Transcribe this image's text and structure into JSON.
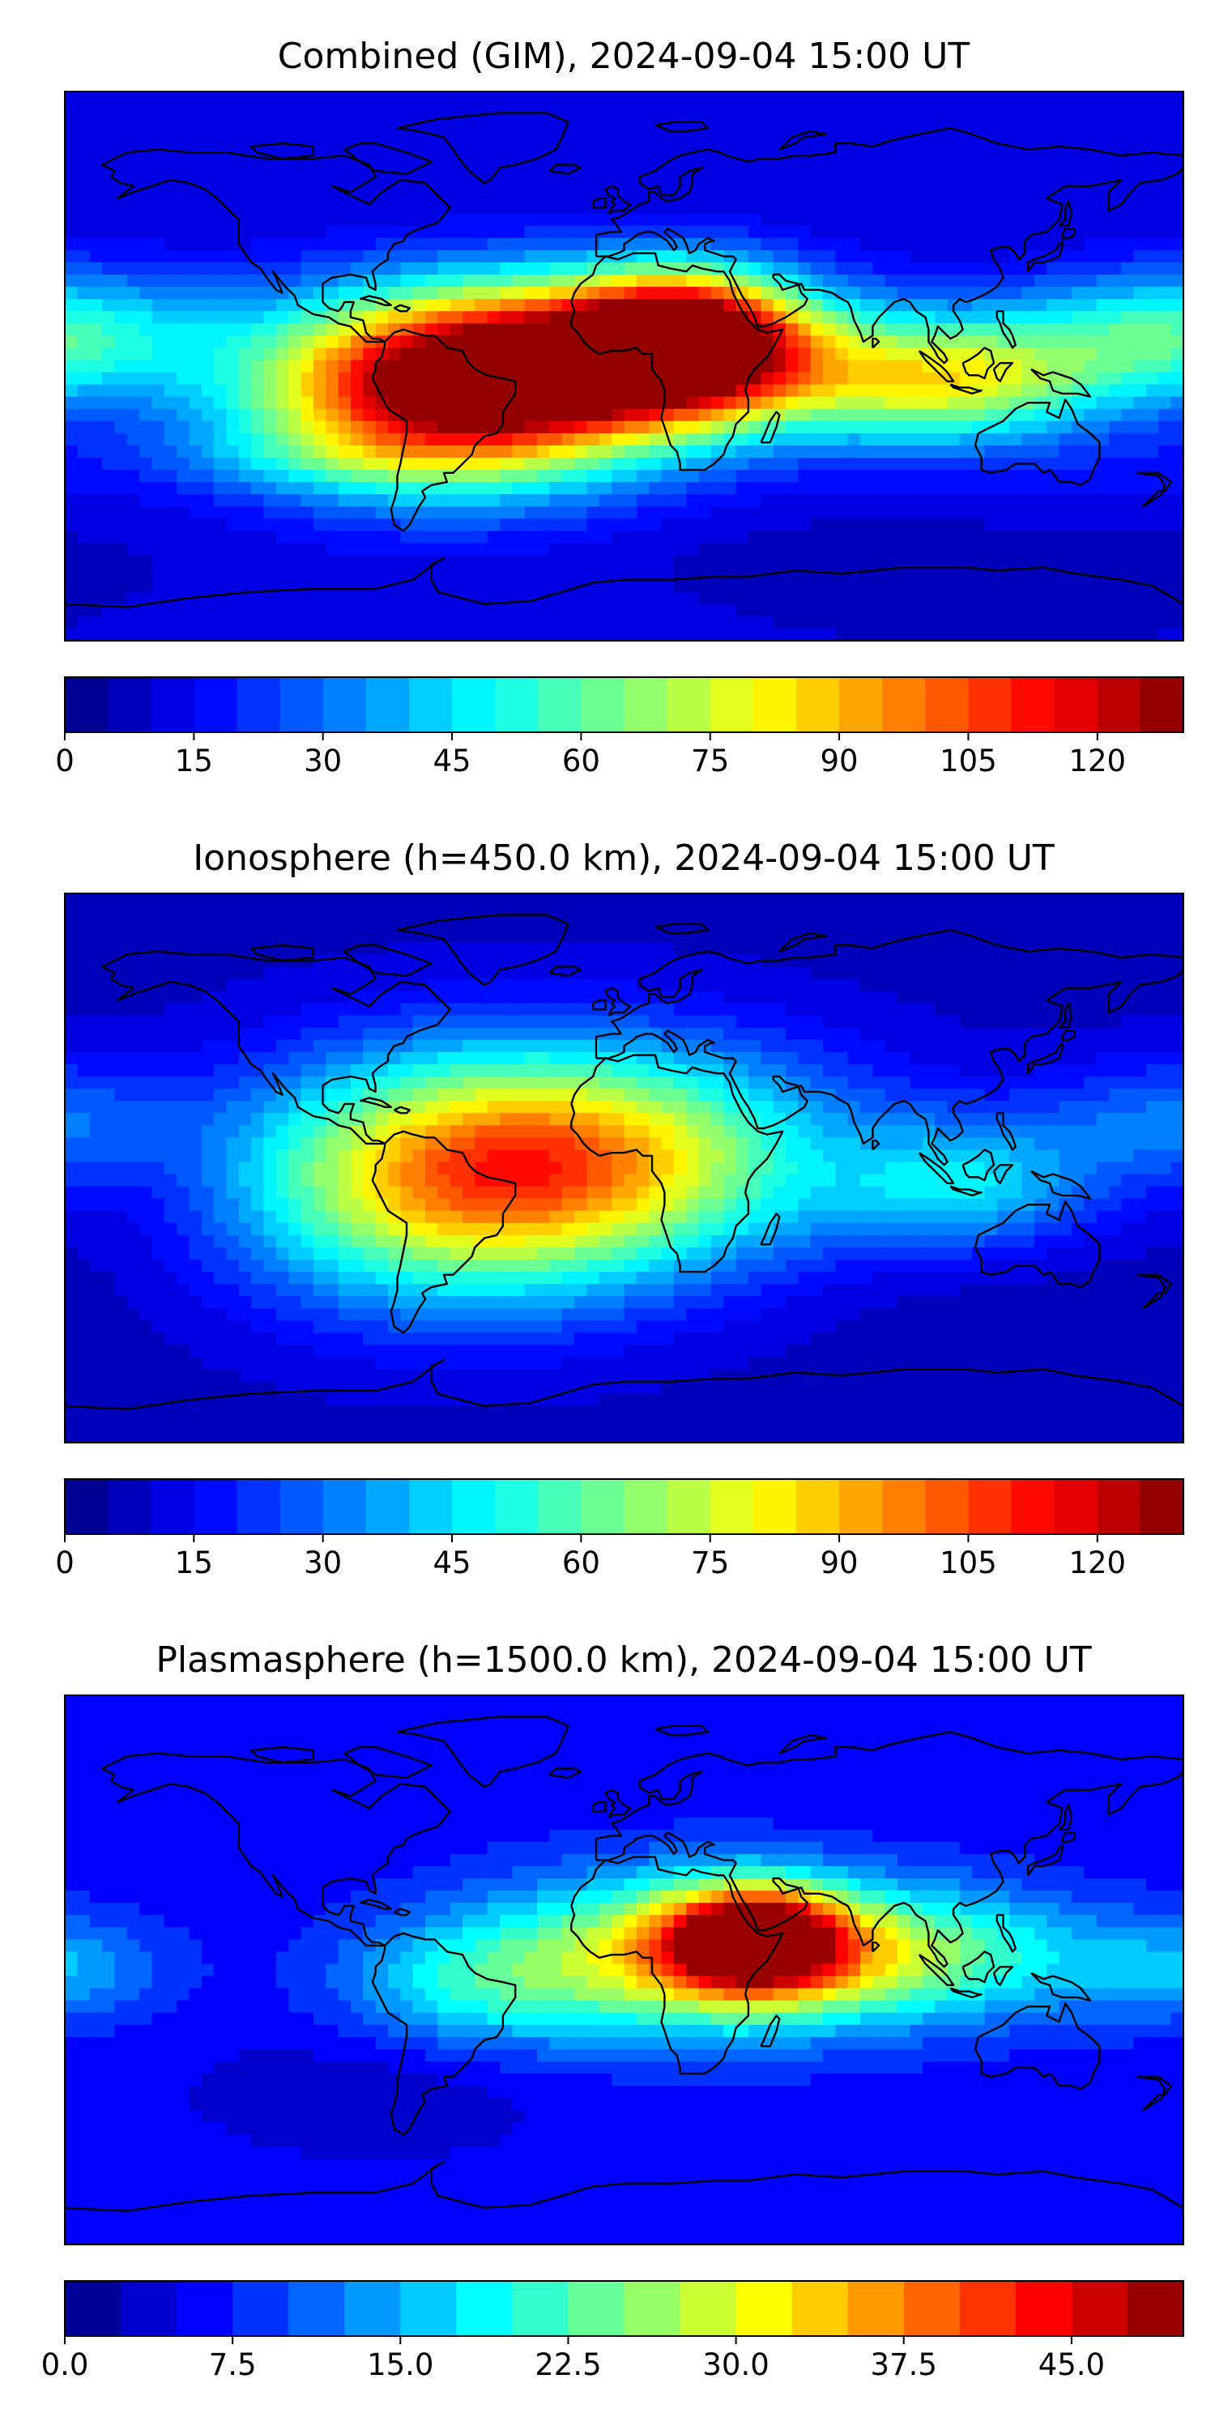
{
  "chart_data": [
    {
      "type": "heatmap",
      "subtype": "filled-contour world map",
      "title": "Combined (GIM), 2024-09-04 15:00 UT",
      "colorbar": {
        "colormap": "jet",
        "levels": 26,
        "range": [
          0,
          130
        ],
        "ticks": [
          0,
          15,
          30,
          45,
          60,
          75,
          90,
          105,
          120
        ],
        "tick_labels": [
          "0",
          "15",
          "30",
          "45",
          "60",
          "75",
          "90",
          "105",
          "120"
        ]
      },
      "hotspots": [
        {
          "lon": -57,
          "lat": -10,
          "value": 105,
          "sx": 45,
          "sy": 22,
          "shape": "gauss"
        },
        {
          "lon": -5,
          "lat": 2,
          "value": 102,
          "sx": 55,
          "sy": 18,
          "shape": "gauss"
        },
        {
          "lon": 20,
          "lat": 10,
          "value": 95,
          "sx": 25,
          "sy": 15,
          "shape": "gauss"
        },
        {
          "lon": 105,
          "lat": -5,
          "value": 70,
          "sx": 35,
          "sy": 14,
          "shape": "gauss"
        },
        {
          "lon": 175,
          "lat": 10,
          "value": 55,
          "sx": 35,
          "sy": 15,
          "shape": "gauss"
        },
        {
          "lon": -145,
          "lat": 0,
          "value": 12,
          "sx": 20,
          "sy": 18,
          "shape": "gauss"
        },
        {
          "lon": 150,
          "lat": -35,
          "value": 15,
          "sx": 40,
          "sy": 10,
          "shape": "gauss"
        },
        {
          "lon": -100,
          "lat": -30,
          "value": 22,
          "sx": 40,
          "sy": 8,
          "shape": "gauss"
        },
        {
          "lon": 80,
          "lat": -60,
          "value": 8,
          "sx": 80,
          "sy": 8,
          "shape": "gauss"
        }
      ],
      "background": 10
    },
    {
      "type": "heatmap",
      "subtype": "filled-contour world map",
      "title": "Ionosphere  (h=450.0 km), 2024-09-04 15:00 UT",
      "colorbar": {
        "colormap": "jet",
        "levels": 26,
        "range": [
          0,
          130
        ],
        "ticks": [
          0,
          15,
          30,
          45,
          60,
          75,
          90,
          105,
          120
        ],
        "tick_labels": [
          "0",
          "15",
          "30",
          "45",
          "60",
          "75",
          "90",
          "105",
          "120"
        ]
      },
      "hotspots": [
        {
          "lon": -55,
          "lat": -5,
          "value": 76,
          "sx": 50,
          "sy": 28,
          "shape": "gauss"
        },
        {
          "lon": 0,
          "lat": 5,
          "value": 62,
          "sx": 55,
          "sy": 25,
          "shape": "gauss"
        },
        {
          "lon": 110,
          "lat": -5,
          "value": 40,
          "sx": 30,
          "sy": 15,
          "shape": "gauss"
        },
        {
          "lon": 175,
          "lat": 15,
          "value": 30,
          "sx": 30,
          "sy": 15,
          "shape": "gauss"
        },
        {
          "lon": 65,
          "lat": 5,
          "value": 5,
          "sx": 18,
          "sy": 10,
          "shape": "gauss"
        },
        {
          "lon": -160,
          "lat": 0,
          "value": 5,
          "sx": 25,
          "sy": 22,
          "shape": "gauss"
        },
        {
          "lon": 130,
          "lat": -45,
          "value": 6,
          "sx": 50,
          "sy": 12,
          "shape": "gauss"
        }
      ],
      "background": 8
    },
    {
      "type": "heatmap",
      "subtype": "filled-contour world map",
      "title": "Plasmasphere (h=1500.0 km), 2024-09-04 15:00 UT",
      "colorbar": {
        "colormap": "jet",
        "levels": 20,
        "range": [
          0,
          50
        ],
        "ticks": [
          0,
          7.5,
          15,
          22.5,
          30,
          37.5,
          45
        ],
        "tick_labels": [
          "0.0",
          "7.5",
          "15.0",
          "22.5",
          "30.0",
          "37.5",
          "45.0"
        ]
      },
      "hotspots": [
        {
          "lon": 42,
          "lat": 10,
          "value": 42,
          "sx": 20,
          "sy": 12,
          "shape": "gauss"
        },
        {
          "lon": 20,
          "lat": 5,
          "value": 30,
          "sx": 45,
          "sy": 18,
          "shape": "gauss"
        },
        {
          "lon": 95,
          "lat": 5,
          "value": 22,
          "sx": 40,
          "sy": 15,
          "shape": "gauss"
        },
        {
          "lon": -50,
          "lat": -5,
          "value": 16,
          "sx": 30,
          "sy": 15,
          "shape": "gauss"
        },
        {
          "lon": 178,
          "lat": 0,
          "value": 14,
          "sx": 25,
          "sy": 12,
          "shape": "gauss"
        },
        {
          "lon": -80,
          "lat": -40,
          "value": 3,
          "sx": 40,
          "sy": 15,
          "shape": "gauss"
        }
      ],
      "background": 6
    }
  ]
}
